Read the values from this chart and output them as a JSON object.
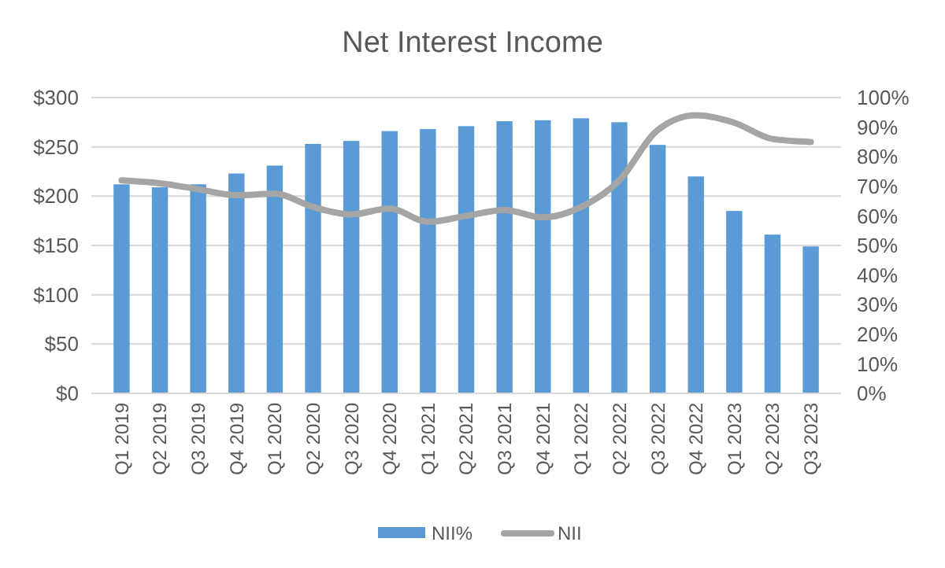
{
  "chart_data": {
    "type": "bar",
    "title": "Net Interest Income",
    "categories": [
      "Q1 2019",
      "Q2 2019",
      "Q3 2019",
      "Q4 2019",
      "Q1 2020",
      "Q2 2020",
      "Q3 2020",
      "Q4 2020",
      "Q1 2021",
      "Q2 2021",
      "Q3 2021",
      "Q4 2021",
      "Q1 2022",
      "Q2 2022",
      "Q3 2022",
      "Q4 2022",
      "Q1 2023",
      "Q2 2023",
      "Q3 2023"
    ],
    "series": [
      {
        "name": "NII%",
        "color": "#5b9bd5",
        "values": [
          212,
          209,
          212,
          223,
          231,
          253,
          256,
          266,
          268,
          271,
          276,
          277,
          279,
          275,
          252,
          220,
          185,
          161,
          149
        ]
      },
      {
        "name": "NII",
        "type": "line",
        "axis": "y2",
        "color": "#a5a5a5",
        "values": [
          72,
          71,
          69,
          67,
          67.5,
          63,
          60.5,
          62.5,
          58,
          60,
          62,
          59.5,
          63,
          72,
          89,
          94,
          91.5,
          86,
          85
        ]
      }
    ],
    "ylim": [
      0,
      300
    ],
    "yticks": [
      {
        "value": 0,
        "label": "$0"
      },
      {
        "value": 50,
        "label": "$50"
      },
      {
        "value": 100,
        "label": "$100"
      },
      {
        "value": 150,
        "label": "$150"
      },
      {
        "value": 200,
        "label": "$200"
      },
      {
        "value": 250,
        "label": "$250"
      },
      {
        "value": 300,
        "label": "$300"
      }
    ],
    "y2lim": [
      0,
      100
    ],
    "y2ticks": [
      {
        "value": 0,
        "label": "0%"
      },
      {
        "value": 10,
        "label": "10%"
      },
      {
        "value": 20,
        "label": "20%"
      },
      {
        "value": 30,
        "label": "30%"
      },
      {
        "value": 40,
        "label": "40%"
      },
      {
        "value": 50,
        "label": "50%"
      },
      {
        "value": 60,
        "label": "60%"
      },
      {
        "value": 70,
        "label": "70%"
      },
      {
        "value": 80,
        "label": "80%"
      },
      {
        "value": 90,
        "label": "90%"
      },
      {
        "value": 100,
        "label": "100%"
      }
    ],
    "grid": "y",
    "legend": "bottom",
    "marker": "none",
    "line_style": "solid"
  }
}
